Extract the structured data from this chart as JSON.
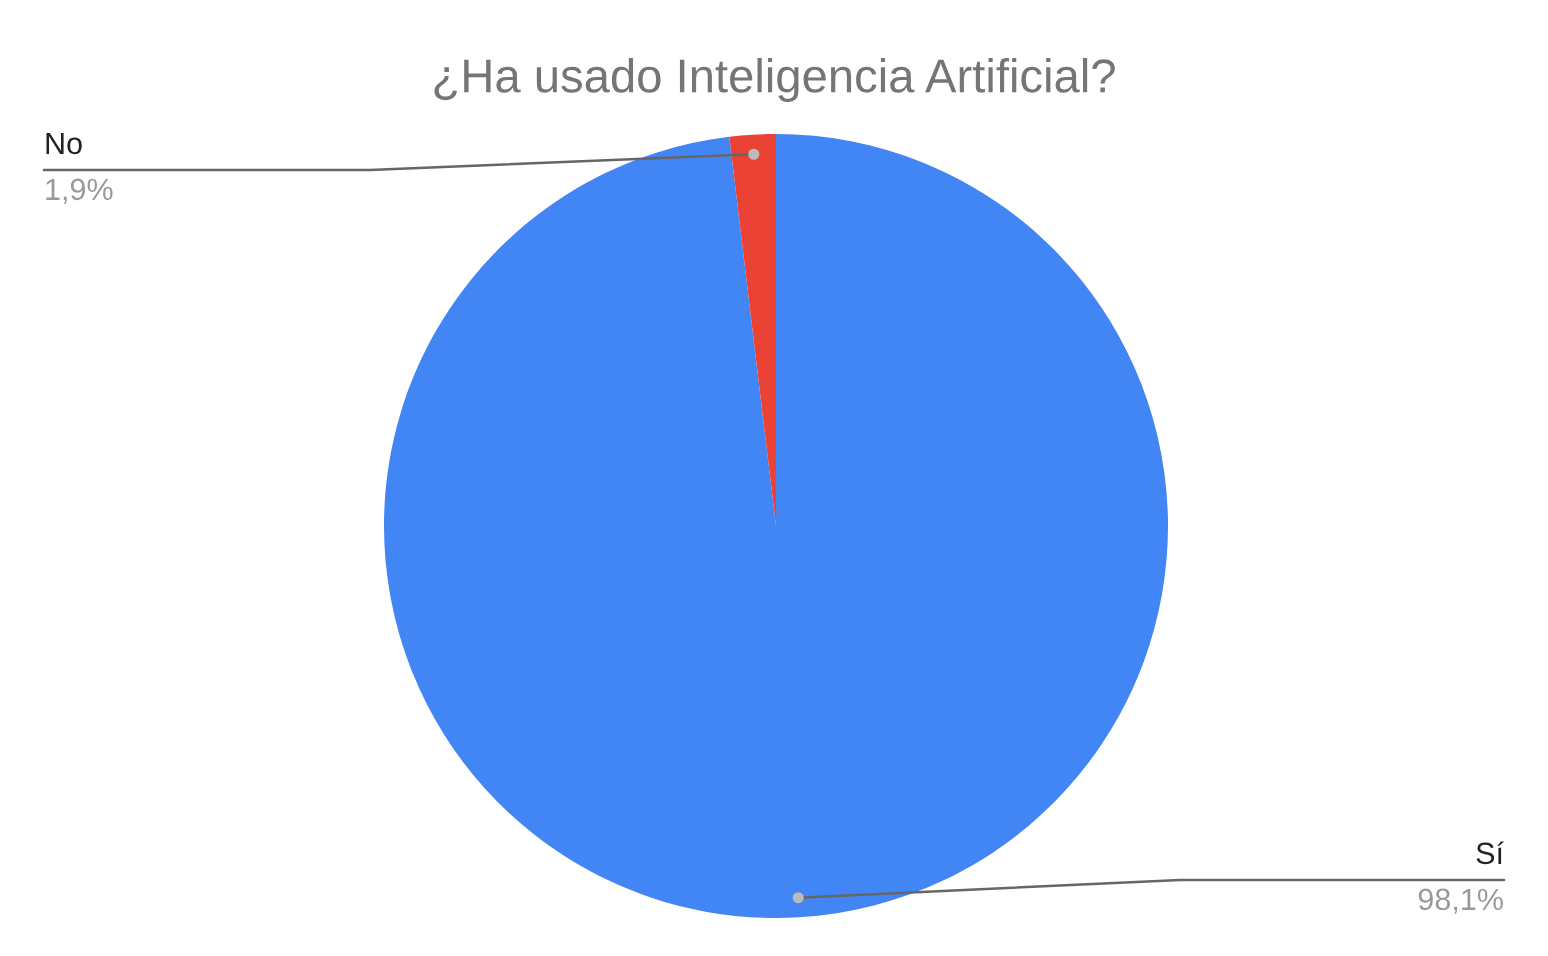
{
  "chart_data": {
    "type": "pie",
    "title": "¿Ha usado Inteligencia Artificial?",
    "categories": [
      "Sí",
      "No"
    ],
    "values": [
      98.1,
      1.9
    ],
    "colors": [
      "#4285f4",
      "#ea4335"
    ],
    "value_labels": [
      "98,1%",
      "1,9%"
    ],
    "legend": false
  }
}
